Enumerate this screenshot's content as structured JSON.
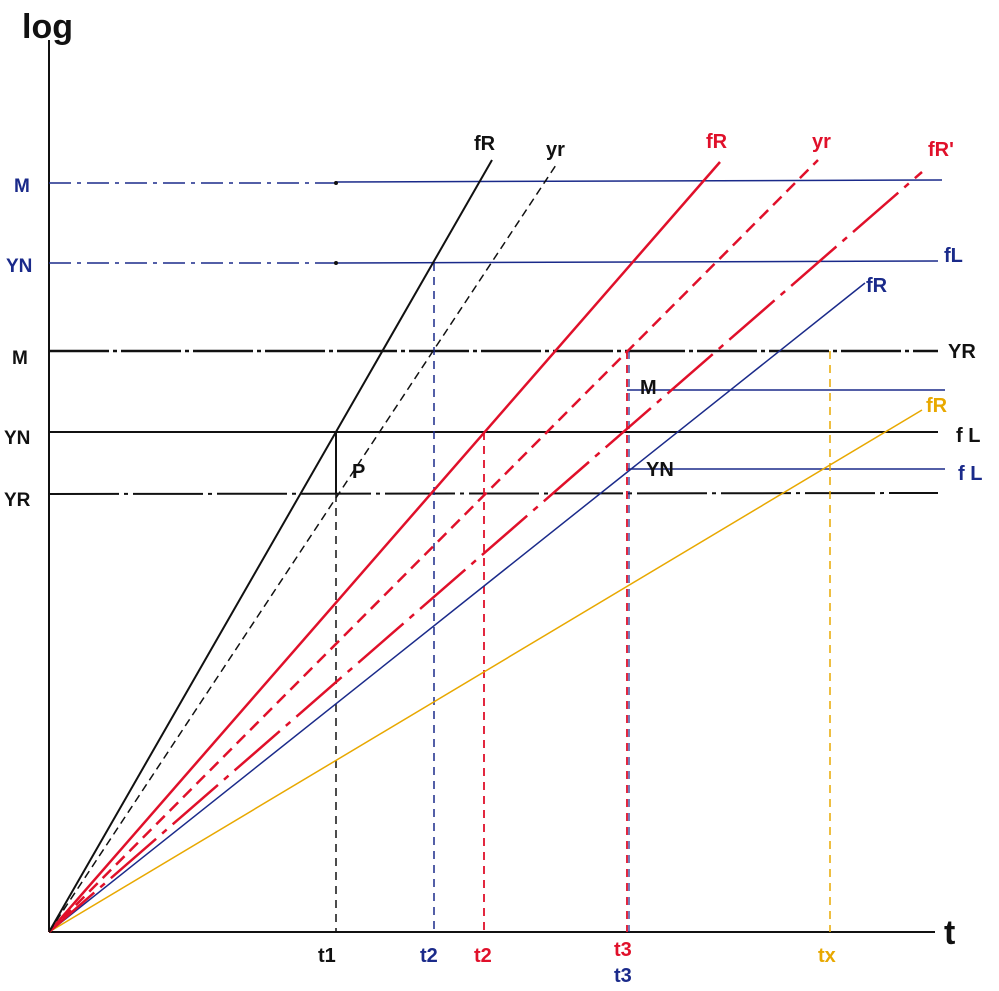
{
  "axes": {
    "y_title": "log",
    "x_title": "t"
  },
  "colors": {
    "black": "#111111",
    "navy": "#1a2a8a",
    "red": "#e0102a",
    "orange": "#e8a800"
  },
  "y_labels_left": {
    "upper_m": "M",
    "upper_yn": "YN",
    "mid_m": "M",
    "mid_yn": "YN",
    "low_yr": "YR"
  },
  "line_labels": {
    "black_fr": "fR",
    "black_yr": "yr",
    "red_fr": "fR",
    "red_yr": "yr",
    "red_fr_prime": "fR'",
    "blue_fl": "fL",
    "blue_fr": "fR",
    "black_yr_right": "YR",
    "black_fl_right": "f L",
    "blue_fl_right": "f L",
    "orange_fr": "fR",
    "inner_m": "M",
    "inner_yn": "YN",
    "point_p": "P"
  },
  "x_labels": {
    "t1": "t1",
    "t2_blue": "t2",
    "t2_red": "t2",
    "t3_red": "t3",
    "t3_blue": "t3",
    "tx": "tx"
  }
}
